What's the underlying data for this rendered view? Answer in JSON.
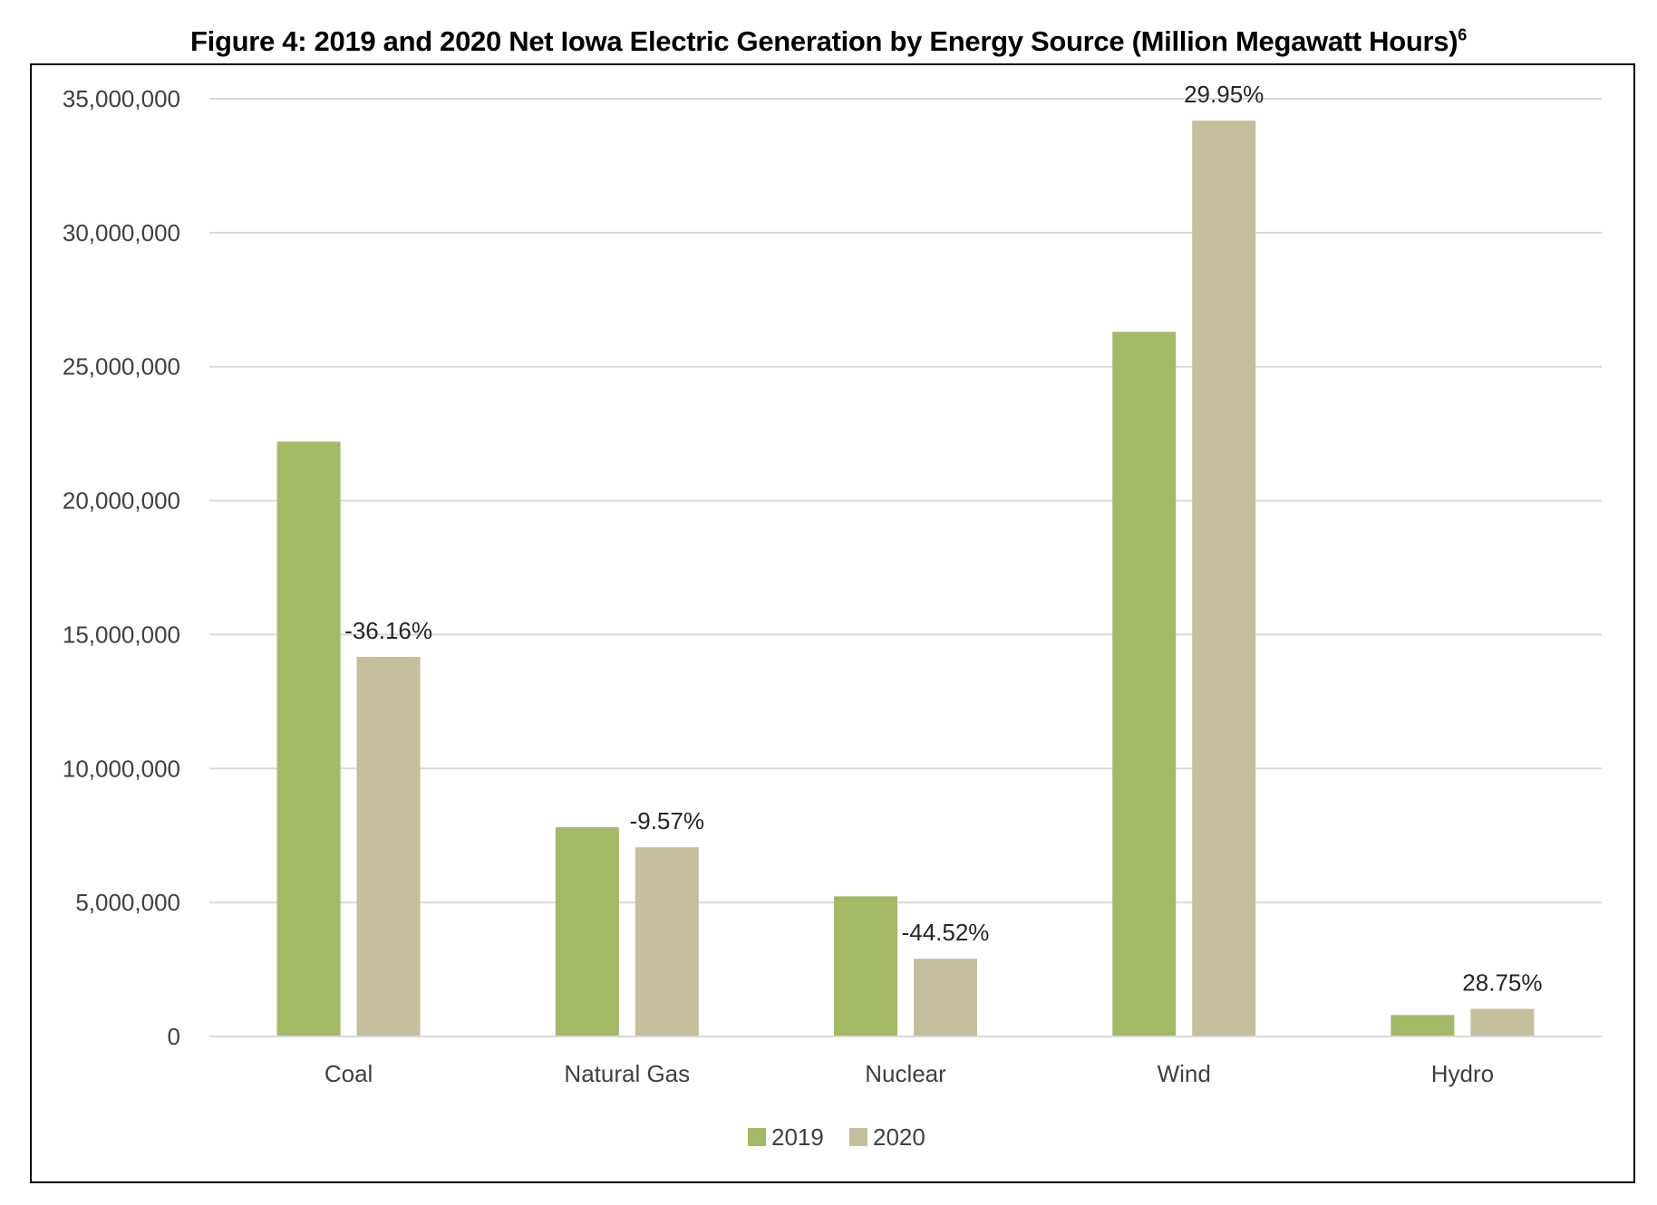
{
  "chart_data": {
    "type": "bar",
    "title": "Figure 4:  2019 and 2020 Net Iowa Electric Generation by Energy Source (Million Megawatt Hours)",
    "title_footnote": "6",
    "categories": [
      "Coal",
      "Natural Gas",
      "Nuclear",
      "Wind",
      "Hydro"
    ],
    "series": [
      {
        "name": "2019",
        "color": "#A3B966",
        "values": [
          22200000,
          7810000,
          5230000,
          26300000,
          800000
        ]
      },
      {
        "name": "2020",
        "color": "#C4BE9C",
        "values": [
          14170000,
          7060000,
          2900000,
          34180000,
          1030000
        ]
      }
    ],
    "data_labels": [
      "-36.16%",
      "-9.57%",
      "-44.52%",
      "29.95%",
      "28.75%"
    ],
    "ylim": [
      0,
      35000000
    ],
    "yticks": [
      0,
      5000000,
      10000000,
      15000000,
      20000000,
      25000000,
      30000000,
      35000000
    ],
    "ytick_labels": [
      "0",
      "5,000,000",
      "10,000,000",
      "15,000,000",
      "20,000,000",
      "25,000,000",
      "30,000,000",
      "35,000,000"
    ],
    "xlabel": "",
    "ylabel": "",
    "grid": true,
    "legend_position": "bottom"
  }
}
